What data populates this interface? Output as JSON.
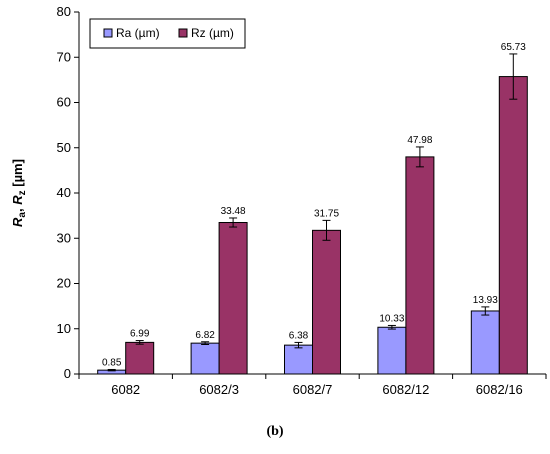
{
  "chart_data": {
    "type": "bar",
    "categories": [
      "6082",
      "6082/3",
      "6082/7",
      "6082/12",
      "6082/16"
    ],
    "series": [
      {
        "name": "Ra (µm)",
        "values": [
          0.85,
          6.82,
          6.38,
          10.33,
          13.93
        ],
        "errors": [
          0.15,
          0.3,
          0.6,
          0.4,
          0.9
        ],
        "color": "#9999ff"
      },
      {
        "name": "Rz (µm)",
        "values": [
          6.99,
          33.48,
          31.75,
          47.98,
          65.73
        ],
        "errors": [
          0.4,
          1.0,
          2.2,
          2.2,
          5.0
        ],
        "color": "#993366"
      }
    ],
    "data_labels": [
      [
        "0.85",
        "6.82",
        "6.38",
        "10.33",
        "13.93"
      ],
      [
        "6.99",
        "33.48",
        "31.75",
        "47.98",
        "65.73"
      ]
    ],
    "yticks": [
      "0",
      "10",
      "20",
      "30",
      "40",
      "50",
      "60",
      "70",
      "80"
    ],
    "ylim": [
      0,
      80
    ],
    "ylabel": {
      "base1": "R",
      "sub1": "a",
      "sep": ", ",
      "base2": "R",
      "sub2": "z",
      "unit": " [µm]"
    },
    "legend_position": "top-left",
    "grid": false
  },
  "caption": "(b)"
}
